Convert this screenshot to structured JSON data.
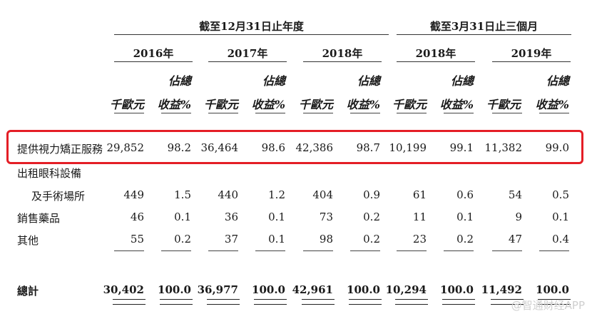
{
  "header": {
    "group_year_end": "截至12月31日止年度",
    "group_three_months": "截至3月31日止三個月",
    "years": [
      "2016年",
      "2017年",
      "2018年",
      "2018年",
      "2019年"
    ],
    "unit_amount": "千歐元",
    "unit_pct_line1": "佔總",
    "unit_pct_line2": "收益%"
  },
  "rows": [
    {
      "label": "提供視力矯正服務",
      "values": [
        "29,852",
        "98.2",
        "36,464",
        "98.6",
        "42,386",
        "98.7",
        "10,199",
        "99.1",
        "11,382",
        "99.0"
      ]
    },
    {
      "label": "出租眼科設備",
      "values": []
    },
    {
      "label": "及手術場所",
      "values": [
        "449",
        "1.5",
        "440",
        "1.2",
        "404",
        "0.9",
        "61",
        "0.6",
        "54",
        "0.5"
      ]
    },
    {
      "label": "銷售藥品",
      "values": [
        "46",
        "0.1",
        "36",
        "0.1",
        "73",
        "0.2",
        "11",
        "0.1",
        "9",
        "0.1"
      ]
    },
    {
      "label": "其他",
      "values": [
        "55",
        "0.2",
        "37",
        "0.1",
        "98",
        "0.2",
        "23",
        "0.2",
        "47",
        "0.4"
      ]
    }
  ],
  "total": {
    "label": "總計",
    "values": [
      "30,402",
      "100.0",
      "36,977",
      "100.0",
      "42,961",
      "100.0",
      "10,294",
      "100.0",
      "11,492",
      "100.0"
    ]
  },
  "watermark": "@智通财经APP",
  "highlight_color": "#e41e26"
}
